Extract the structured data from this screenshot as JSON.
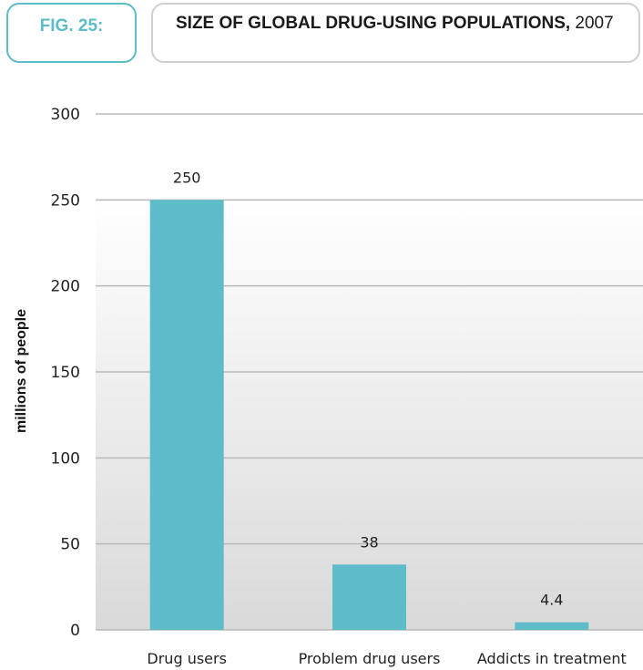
{
  "figure": {
    "number_label": "FIG. 25:",
    "title_bold": "SIZE OF GLOBAL DRUG-USING POPULATIONS,",
    "title_regular": " 2007"
  },
  "chart_data": {
    "type": "bar",
    "categories": [
      "Drug users",
      "Problem drug users",
      "Addicts in treatment"
    ],
    "values": [
      250,
      38,
      4.4
    ],
    "value_labels": [
      "250",
      "38",
      "4.4"
    ],
    "ylabel": "millions of people",
    "xlabel": "",
    "ylim": [
      0,
      300
    ],
    "yticks": [
      0,
      50,
      100,
      150,
      200,
      250,
      300
    ],
    "grid": true,
    "bar_color": "#5ebcc9",
    "gridline_color": "#b9b9b9"
  }
}
